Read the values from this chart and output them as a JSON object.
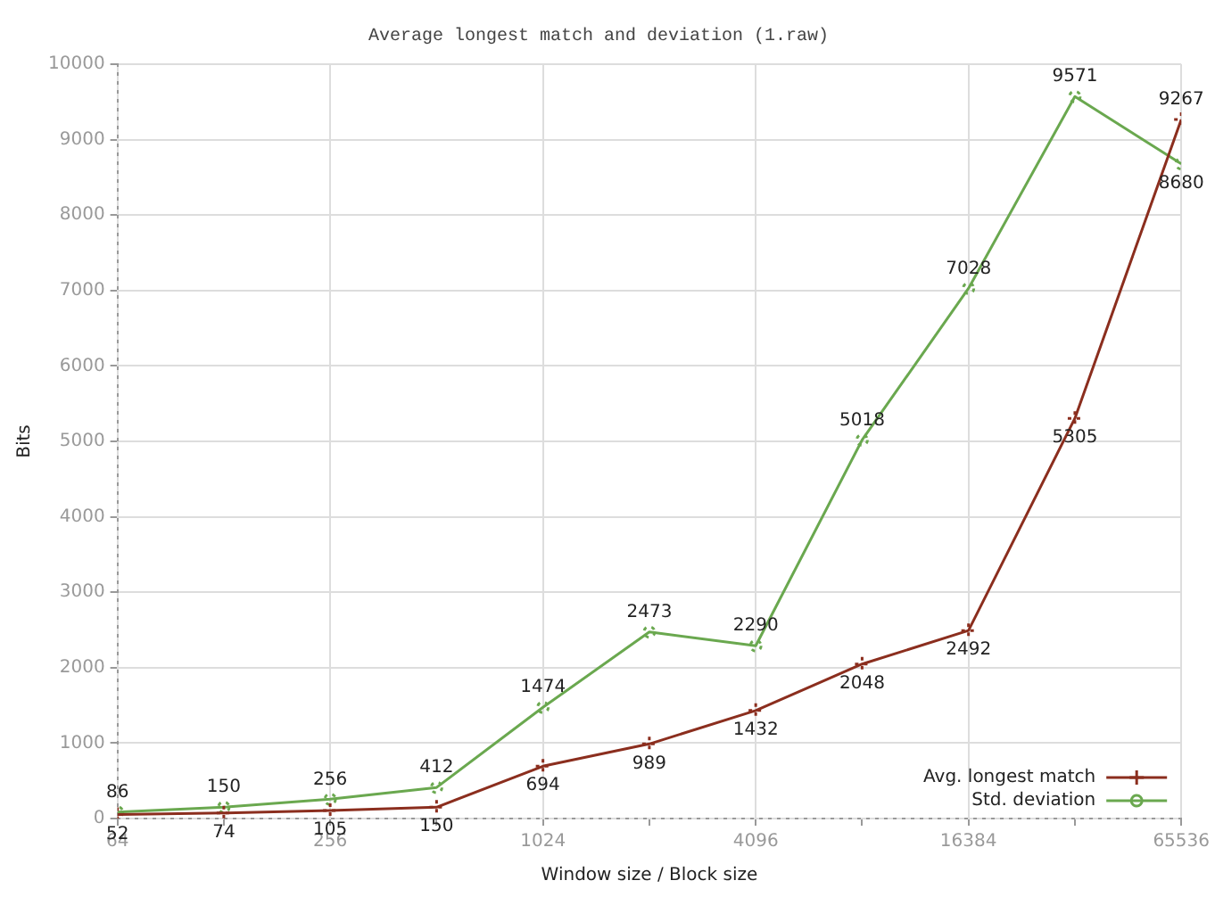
{
  "chart_data": {
    "type": "line",
    "title": "Average longest match and deviation (1.raw)",
    "xlabel": "Window size / Block size",
    "ylabel": "Bits",
    "x": [
      64,
      128,
      256,
      512,
      1024,
      2048,
      4096,
      8192,
      16384,
      32768,
      65536
    ],
    "series": [
      {
        "name": "Avg. longest match",
        "color": "#8b2e1e",
        "marker": "cross",
        "values": [
          52,
          74,
          105,
          150,
          694,
          989,
          1432,
          2048,
          2492,
          5305,
          9267
        ]
      },
      {
        "name": "Std. deviation",
        "color": "#6aa84f",
        "marker": "circle",
        "values": [
          86,
          150,
          256,
          412,
          1474,
          2473,
          2290,
          5018,
          7028,
          9571,
          8680
        ]
      }
    ],
    "log": "x",
    "xlim": [
      64,
      65536
    ],
    "xticks": [
      64,
      {
        "value": 128,
        "label": null
      },
      256,
      {
        "value": 512,
        "label": null
      },
      1024,
      {
        "value": 2048,
        "label": null
      },
      4096,
      {
        "value": 8192,
        "label": null
      },
      16384,
      {
        "value": 32768,
        "label": null
      },
      65536
    ],
    "ylim": [
      0,
      10000
    ],
    "yticks": [
      0,
      1000,
      2000,
      3000,
      4000,
      5000,
      6000,
      7000,
      8000,
      9000,
      10000
    ],
    "grid": true,
    "legend": "bottom right",
    "data_labels": true,
    "line_style": "solid"
  }
}
